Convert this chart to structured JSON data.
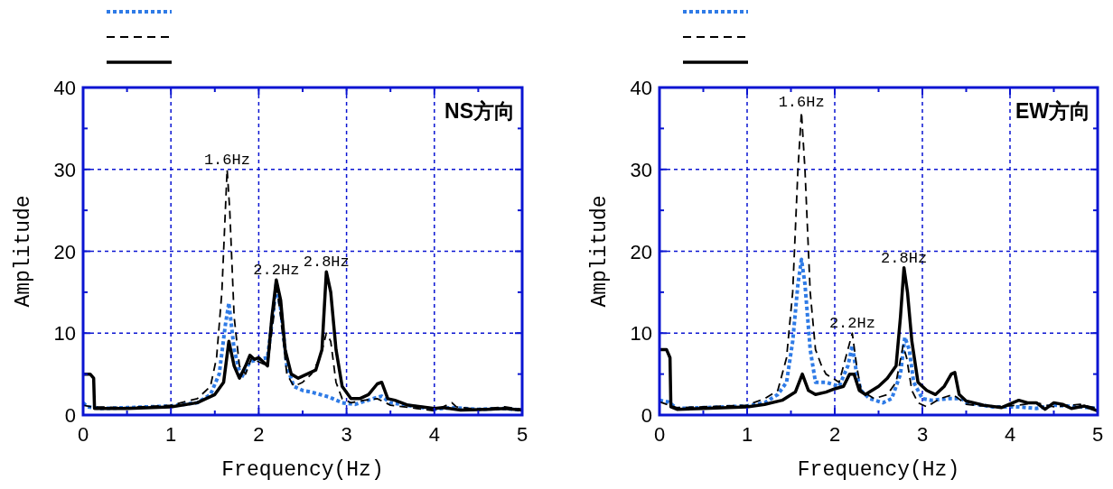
{
  "chart_data": [
    {
      "type": "line",
      "xlabel": "Frequency(Hz)",
      "ylabel": "Amplitude",
      "xlim": [
        0,
        5
      ],
      "ylim": [
        0,
        40
      ],
      "xticks": [
        0,
        {
          "value": 0.5,
          "label": null
        },
        1,
        {
          "value": 1.5,
          "label": null
        },
        2,
        {
          "value": 2.5,
          "label": null
        },
        3,
        {
          "value": 3.5,
          "label": null
        },
        4,
        {
          "value": 4.5,
          "label": null
        },
        5
      ],
      "yticks": [
        0,
        {
          "value": 5,
          "label": null
        },
        10,
        {
          "value": 15,
          "label": null
        },
        20,
        {
          "value": 25,
          "label": null
        },
        30,
        {
          "value": 35,
          "label": null
        },
        40
      ],
      "grid": true,
      "series": [
        {
          "color": "#2f7be6",
          "line_style": "dotted",
          "x": [
            0,
            0.05,
            0.2,
            0.5,
            1.0,
            1.3,
            1.45,
            1.55,
            1.62,
            1.66,
            1.72,
            1.8,
            1.9,
            2.0,
            2.1,
            2.17,
            2.2,
            2.25,
            2.32,
            2.4,
            2.5,
            2.6,
            2.8,
            2.95,
            3.1,
            3.3,
            3.4,
            3.5,
            3.8,
            4.0,
            4.2,
            4.5,
            4.8,
            5
          ],
          "values": [
            1.5,
            1,
            0.8,
            0.9,
            1.1,
            1.5,
            2.5,
            5,
            11,
            13.7,
            8,
            4.5,
            6.5,
            6.8,
            7,
            13,
            16,
            13,
            6,
            3.5,
            3,
            2.8,
            2.2,
            1.5,
            1.3,
            2,
            2.3,
            1.5,
            1,
            0.7,
            0.9,
            0.7,
            0.8,
            0.6
          ]
        },
        {
          "color": "#000000",
          "line_style": "dashed",
          "x": [
            0,
            0.1,
            0.5,
            1,
            1.3,
            1.45,
            1.52,
            1.58,
            1.62,
            1.64,
            1.67,
            1.72,
            1.78,
            1.85,
            1.92,
            2.0,
            2.1,
            2.17,
            2.2,
            2.25,
            2.32,
            2.4,
            2.5,
            2.6,
            2.7,
            2.77,
            2.82,
            2.88,
            2.95,
            3.05,
            3.2,
            3.35,
            3.5,
            3.8,
            4.0,
            4.2,
            4.25,
            4.5,
            4.8,
            5
          ],
          "values": [
            1.2,
            1,
            0.9,
            1.2,
            2,
            3.5,
            7,
            15,
            25,
            30,
            25,
            12,
            6,
            5,
            7,
            6.5,
            6,
            12,
            16,
            12,
            5,
            3.5,
            4,
            5,
            7,
            10,
            9,
            4,
            2,
            1.5,
            1.8,
            2,
            1.2,
            0.8,
            0.5,
            1.5,
            1,
            0.7,
            1,
            0.7
          ]
        },
        {
          "color": "#000000",
          "line_style": "solid",
          "x": [
            0,
            0.08,
            0.12,
            0.13,
            0.5,
            1.0,
            1.3,
            1.5,
            1.6,
            1.66,
            1.72,
            1.78,
            1.85,
            1.9,
            1.95,
            2.0,
            2.05,
            2.1,
            2.15,
            2.2,
            2.25,
            2.3,
            2.37,
            2.45,
            2.55,
            2.65,
            2.72,
            2.77,
            2.82,
            2.88,
            2.95,
            3.05,
            3.15,
            3.25,
            3.35,
            3.4,
            3.47,
            3.55,
            3.7,
            4.0,
            4.1,
            4.3,
            4.6,
            4.8,
            5
          ],
          "values": [
            5,
            5,
            4.5,
            0.8,
            0.8,
            1.0,
            1.5,
            2.5,
            4,
            9,
            6,
            4.5,
            6,
            7.3,
            6.8,
            7,
            6.5,
            6,
            12,
            16.5,
            14,
            8,
            5,
            4.5,
            5,
            5.5,
            8,
            17.5,
            15,
            8,
            3.5,
            2,
            2,
            2.5,
            3.8,
            4,
            2,
            1.8,
            1.2,
            0.8,
            0.9,
            0.6,
            0.7,
            0.8,
            0.6
          ]
        }
      ],
      "annotations": [
        "NS方向",
        {
          "text": "1.6Hz",
          "x": 1.64,
          "y": 30
        },
        {
          "text": "2.2Hz",
          "x": 2.2,
          "y": 16.5
        },
        {
          "text": "2.8Hz",
          "x": 2.77,
          "y": 17.5
        }
      ]
    },
    {
      "type": "line",
      "xlabel": "Frequency(Hz)",
      "ylabel": "Amplitude",
      "xlim": [
        0,
        5
      ],
      "ylim": [
        0,
        40
      ],
      "xticks": [
        0,
        {
          "value": 0.5,
          "label": null
        },
        1,
        {
          "value": 1.5,
          "label": null
        },
        2,
        {
          "value": 2.5,
          "label": null
        },
        3,
        {
          "value": 3.5,
          "label": null
        },
        4,
        {
          "value": 4.5,
          "label": null
        },
        5
      ],
      "yticks": [
        0,
        {
          "value": 5,
          "label": null
        },
        10,
        {
          "value": 15,
          "label": null
        },
        20,
        {
          "value": 25,
          "label": null
        },
        30,
        {
          "value": 35,
          "label": null
        },
        40
      ],
      "grid": true,
      "series": [
        {
          "color": "#2f7be6",
          "line_style": "dotted",
          "x": [
            0,
            0.1,
            0.2,
            0.5,
            1.0,
            1.2,
            1.35,
            1.45,
            1.52,
            1.58,
            1.62,
            1.66,
            1.72,
            1.78,
            1.9,
            2.05,
            2.15,
            2.2,
            2.25,
            2.3,
            2.4,
            2.55,
            2.65,
            2.75,
            2.8,
            2.85,
            2.9,
            3.0,
            3.1,
            3.3,
            3.45,
            3.5,
            3.8,
            4.1,
            4.3,
            4.5,
            4.8,
            5
          ],
          "values": [
            1.8,
            1.6,
            0.8,
            0.9,
            1.1,
            1.5,
            2.5,
            4,
            9,
            16,
            19,
            16,
            8,
            4,
            4,
            3.5,
            6,
            8.5,
            5,
            3,
            2,
            1.5,
            2,
            5,
            9.5,
            8,
            4,
            2,
            1.8,
            2,
            2,
            1.5,
            1,
            1,
            0.8,
            1.2,
            1,
            0.8
          ]
        },
        {
          "color": "#000000",
          "line_style": "dashed",
          "x": [
            0,
            0.2,
            0.5,
            1.0,
            1.2,
            1.35,
            1.45,
            1.52,
            1.58,
            1.62,
            1.66,
            1.72,
            1.78,
            1.85,
            1.9,
            2.05,
            2.15,
            2.2,
            2.25,
            2.3,
            2.45,
            2.6,
            2.7,
            2.78,
            2.82,
            2.88,
            2.95,
            3.05,
            3.2,
            3.35,
            3.5,
            3.8,
            4.1,
            4.3,
            4.5,
            4.8,
            5
          ],
          "values": [
            1.6,
            0.9,
            1,
            1.2,
            2,
            3,
            7,
            15,
            30,
            37,
            30,
            15,
            8,
            6,
            5,
            4,
            8,
            10,
            6,
            3,
            2,
            2.5,
            4,
            8.5,
            7,
            3,
            1.5,
            1,
            2,
            2.5,
            1.3,
            1,
            1.2,
            1.5,
            1,
            1.3,
            0.8
          ]
        },
        {
          "color": "#000000",
          "line_style": "solid",
          "x": [
            0,
            0.08,
            0.12,
            0.13,
            0.2,
            0.5,
            1.0,
            1.2,
            1.4,
            1.55,
            1.63,
            1.7,
            1.78,
            1.9,
            2.0,
            2.1,
            2.17,
            2.22,
            2.28,
            2.35,
            2.5,
            2.6,
            2.7,
            2.75,
            2.79,
            2.83,
            2.88,
            2.95,
            3.05,
            3.15,
            3.25,
            3.33,
            3.37,
            3.42,
            3.5,
            3.7,
            3.9,
            4.1,
            4.2,
            4.3,
            4.4,
            4.5,
            4.6,
            4.7,
            4.85,
            5
          ],
          "values": [
            8,
            8,
            7,
            1,
            0.7,
            0.8,
            1.0,
            1.3,
            1.8,
            2.8,
            5,
            3,
            2.5,
            2.8,
            3.2,
            3.5,
            5,
            5,
            3,
            2.5,
            3.5,
            4.5,
            6,
            12,
            18,
            15,
            9,
            4,
            3,
            2.5,
            3.5,
            5,
            5.2,
            2.5,
            1.7,
            1.2,
            0.9,
            1.8,
            1.5,
            1.5,
            0.7,
            1.5,
            1.3,
            0.8,
            1.1,
            0.5
          ]
        }
      ],
      "annotations": [
        "EW方向",
        {
          "text": "1.6Hz",
          "x": 1.62,
          "y": 37
        },
        {
          "text": "2.2Hz",
          "x": 2.2,
          "y": 10
        },
        {
          "text": "2.8Hz",
          "x": 2.79,
          "y": 18
        }
      ]
    }
  ]
}
